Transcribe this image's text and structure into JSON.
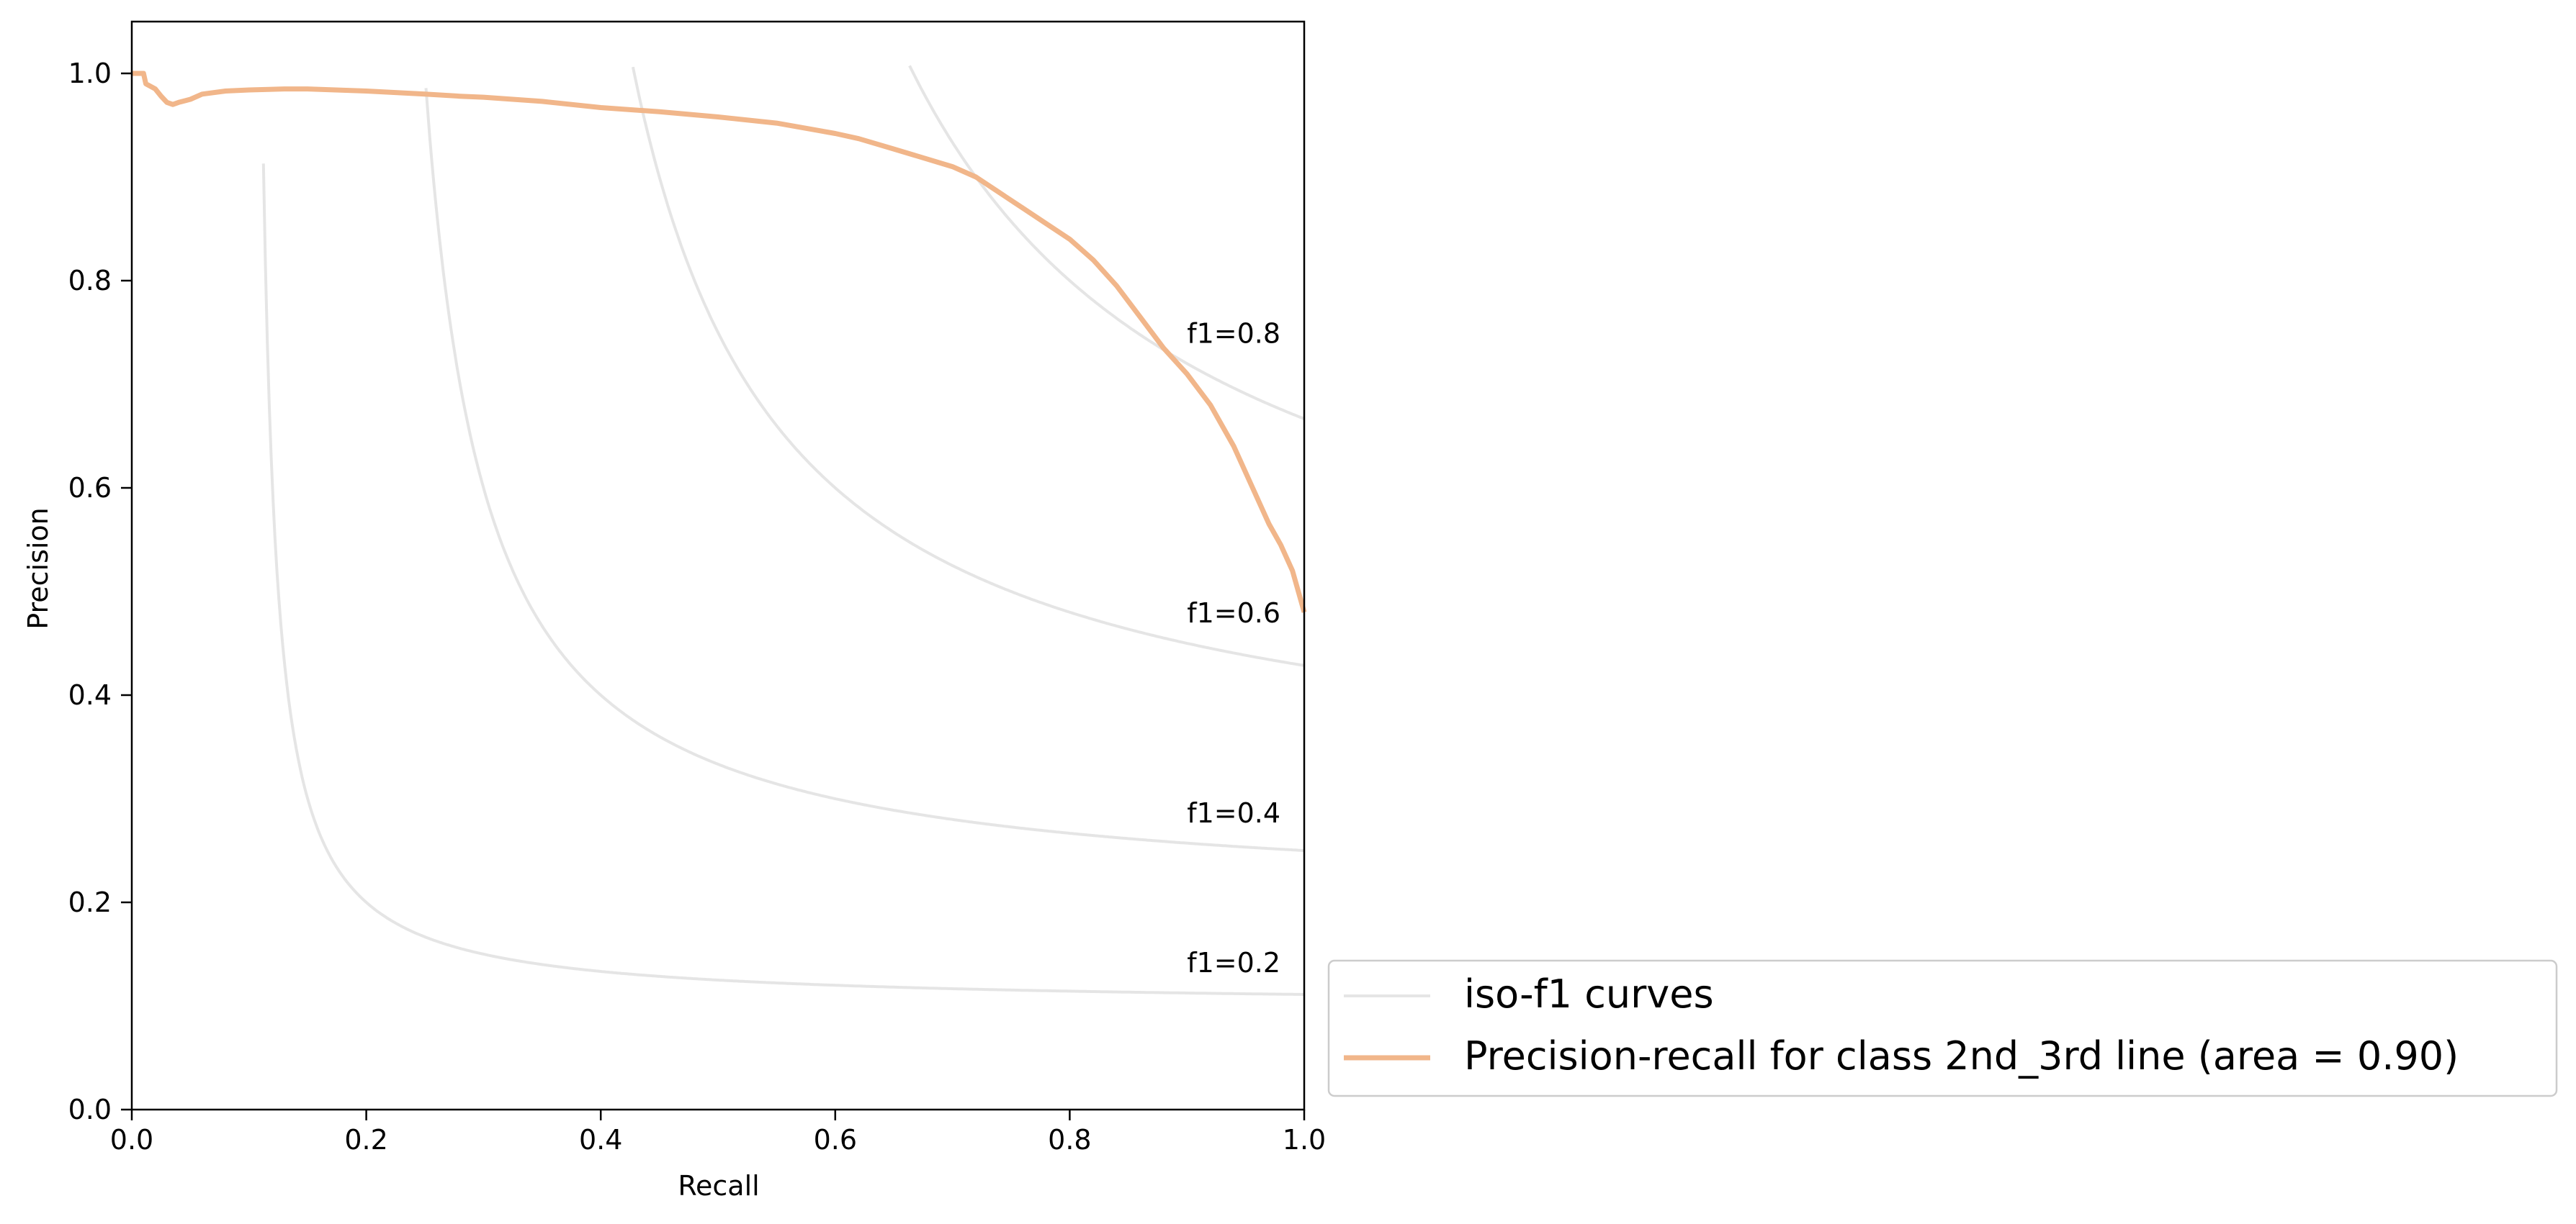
{
  "chart_data": {
    "type": "line",
    "xlabel": "Recall",
    "ylabel": "Precision",
    "xlim": [
      0.0,
      1.0
    ],
    "ylim": [
      0.0,
      1.05
    ],
    "xticks": [
      0.0,
      0.2,
      0.4,
      0.6,
      0.8,
      1.0
    ],
    "yticks": [
      0.0,
      0.2,
      0.4,
      0.6,
      0.8,
      1.0
    ],
    "xtick_labels": [
      "0.0",
      "0.2",
      "0.4",
      "0.6",
      "0.8",
      "1.0"
    ],
    "ytick_labels": [
      "0.0",
      "0.2",
      "0.4",
      "0.6",
      "0.8",
      "1.0"
    ],
    "grid": false,
    "legend_position": "outside-lower-right",
    "iso_f1": {
      "legend_label": "iso-f1 curves",
      "color": "#e5e5e5",
      "levels": [
        {
          "f1": 0.2,
          "label": "f1=0.2"
        },
        {
          "f1": 0.4,
          "label": "f1=0.4"
        },
        {
          "f1": 0.6,
          "label": "f1=0.6"
        },
        {
          "f1": 0.8,
          "label": "f1=0.8"
        }
      ]
    },
    "series": [
      {
        "name": "Precision-recall for class 2nd_3rd line (area = 0.90)",
        "color": "#f1b68a",
        "x": [
          0.0,
          0.01,
          0.012,
          0.02,
          0.025,
          0.03,
          0.035,
          0.04,
          0.05,
          0.06,
          0.08,
          0.1,
          0.13,
          0.15,
          0.2,
          0.25,
          0.28,
          0.3,
          0.35,
          0.4,
          0.45,
          0.5,
          0.55,
          0.6,
          0.62,
          0.65,
          0.7,
          0.72,
          0.74,
          0.76,
          0.78,
          0.8,
          0.82,
          0.84,
          0.86,
          0.88,
          0.9,
          0.92,
          0.94,
          0.95,
          0.96,
          0.97,
          0.98,
          0.99,
          1.0
        ],
        "y": [
          1.0,
          1.0,
          0.99,
          0.985,
          0.978,
          0.972,
          0.97,
          0.972,
          0.975,
          0.98,
          0.983,
          0.984,
          0.985,
          0.985,
          0.983,
          0.98,
          0.978,
          0.977,
          0.973,
          0.967,
          0.963,
          0.958,
          0.952,
          0.942,
          0.937,
          0.927,
          0.91,
          0.9,
          0.885,
          0.87,
          0.855,
          0.84,
          0.82,
          0.795,
          0.765,
          0.735,
          0.71,
          0.68,
          0.64,
          0.615,
          0.59,
          0.565,
          0.545,
          0.52,
          0.48
        ]
      }
    ]
  }
}
